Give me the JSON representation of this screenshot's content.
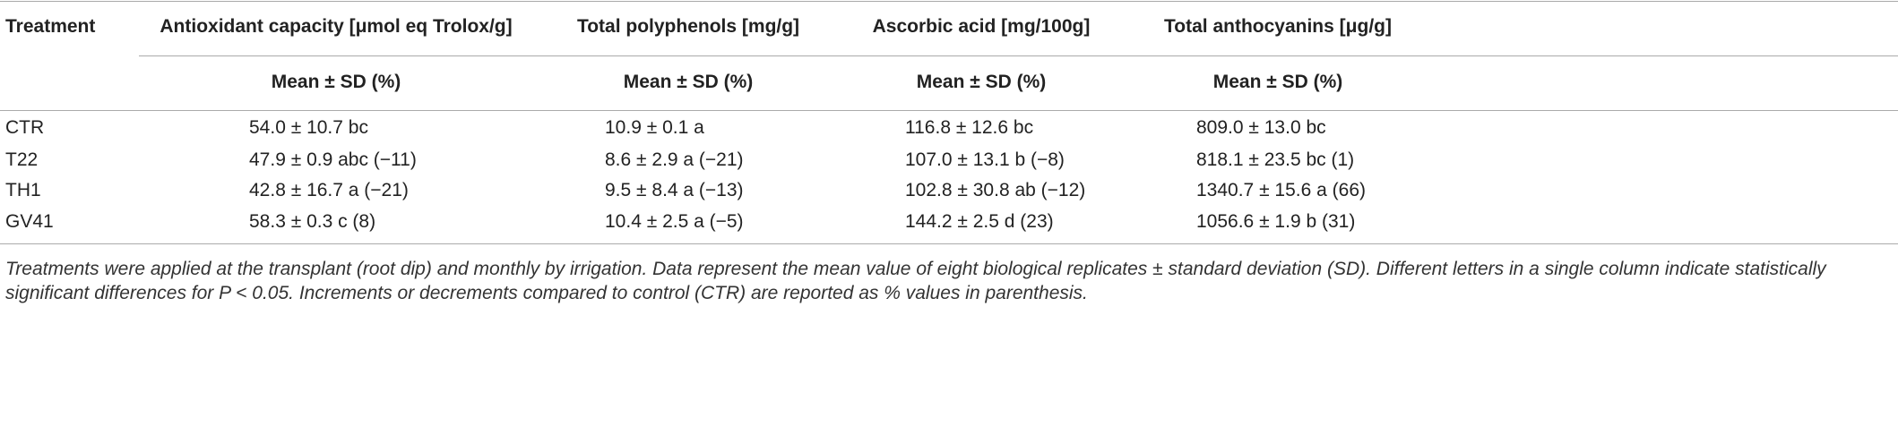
{
  "table": {
    "header": [
      "Treatment",
      "Antioxidant capacity [μmol eq Trolox/g]",
      "Total polyphenols [mg/g]",
      "Ascorbic acid [mg/100g]",
      "Total anthocyanins [μg/g]"
    ],
    "subheader": [
      "Mean ± SD (%)",
      "Mean ± SD (%)",
      "Mean ± SD (%)",
      "Mean ± SD (%)"
    ],
    "rows": [
      [
        "CTR",
        "54.0 ± 10.7 bc",
        "10.9 ± 0.1 a",
        "116.8 ± 12.6 bc",
        "809.0 ± 13.0 bc"
      ],
      [
        "T22",
        "47.9 ± 0.9 abc (−11)",
        "8.6 ± 2.9 a (−21)",
        "107.0 ± 13.1 b (−8)",
        "818.1 ± 23.5 bc (1)"
      ],
      [
        "TH1",
        "42.8 ± 16.7 a (−21)",
        "9.5 ± 8.4 a (−13)",
        "102.8 ± 30.8 ab (−12)",
        "1340.7 ± 15.6 a (66)"
      ],
      [
        "GV41",
        "58.3 ± 0.3 c (8)",
        "10.4 ± 2.5 a (−5)",
        "144.2 ± 2.5 d (23)",
        "1056.6 ± 1.9 b (31)"
      ]
    ],
    "footnote": "Treatments were applied at the transplant (root dip) and monthly by irrigation. Data represent the mean value of eight biological replicates ± standard deviation (SD). Different letters in a single column indicate statistically significant differences for P < 0.05. Increments or decrements compared to control (CTR) are reported as % values in parenthesis."
  }
}
